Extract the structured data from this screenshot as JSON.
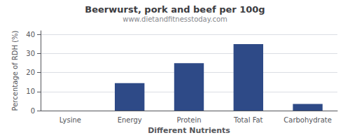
{
  "chart_data": {
    "type": "bar",
    "title": "Beerwurst, pork and beef per 100g",
    "subtitle": "www.dietandfitnesstoday.com",
    "xlabel": "Different Nutrients",
    "ylabel": "Percentage of RDH (%)",
    "categories": [
      "Lysine",
      "Energy",
      "Protein",
      "Total Fat",
      "Carbohydrate"
    ],
    "values": [
      0,
      14.5,
      25,
      35,
      3.5
    ],
    "color": "#2e4a87",
    "ylim": [
      0,
      42
    ],
    "yticks": [
      0,
      10,
      20,
      30,
      40
    ],
    "grid": true
  }
}
